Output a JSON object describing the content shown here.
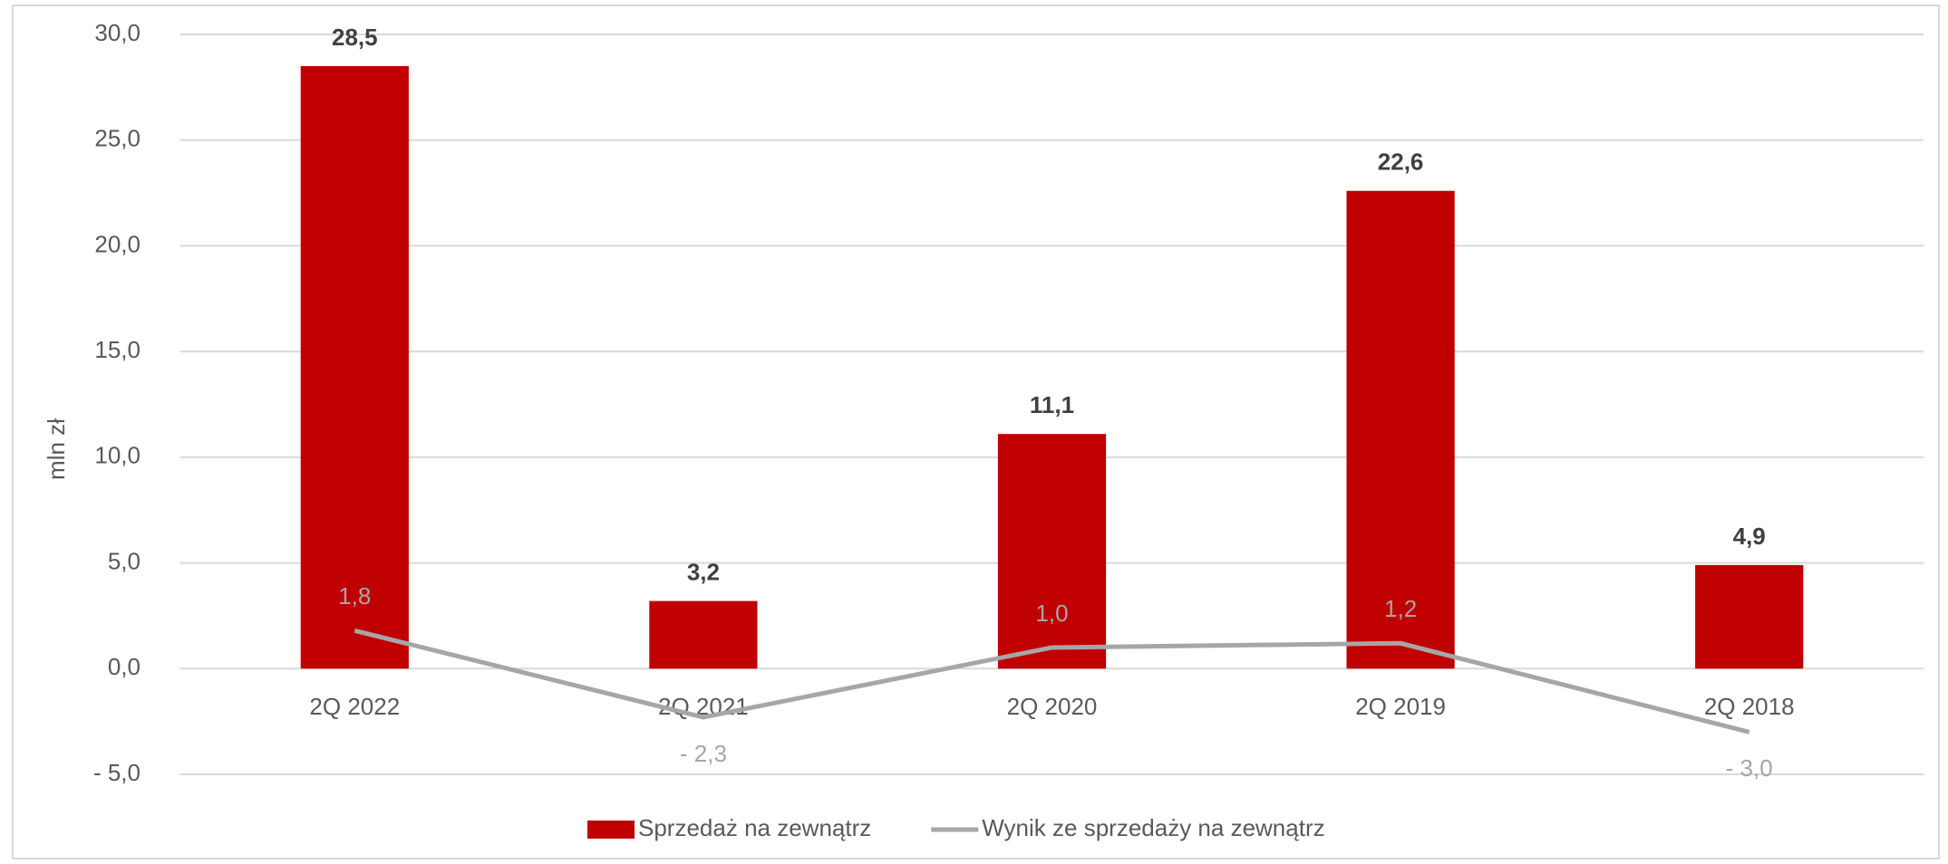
{
  "chart_data": {
    "type": "combo",
    "categories": [
      "2Q 2022",
      "2Q 2021",
      "2Q 2020",
      "2Q 2019",
      "2Q 2018"
    ],
    "series": [
      {
        "name": "Sprzedaż na zewnątrz",
        "type": "bar",
        "color": "#c00000",
        "values": [
          28.5,
          3.2,
          11.1,
          22.6,
          4.9
        ],
        "value_labels": [
          "28,5",
          "3,2",
          "11,1",
          "22,6",
          "4,9"
        ]
      },
      {
        "name": "Wynik ze sprzedaży na zewnątrz",
        "type": "line",
        "color": "#a6a6a6",
        "values": [
          1.8,
          -2.3,
          1.0,
          1.2,
          -3.0
        ],
        "value_labels": [
          "1,8",
          "- 2,3",
          "1,0",
          "1,2",
          "- 3,0"
        ]
      }
    ],
    "y_label": "mln zł",
    "ylim": [
      -5,
      30
    ],
    "yticks": [
      {
        "value": -5,
        "label": "- 5,0"
      },
      {
        "value": 0,
        "label": "0,0"
      },
      {
        "value": 5,
        "label": "5,0"
      },
      {
        "value": 10,
        "label": "10,0"
      },
      {
        "value": 15,
        "label": "15,0"
      },
      {
        "value": 20,
        "label": "20,0"
      },
      {
        "value": 25,
        "label": "25,0"
      },
      {
        "value": 30,
        "label": "30,0"
      }
    ],
    "grid": true,
    "legend": "bottom"
  }
}
